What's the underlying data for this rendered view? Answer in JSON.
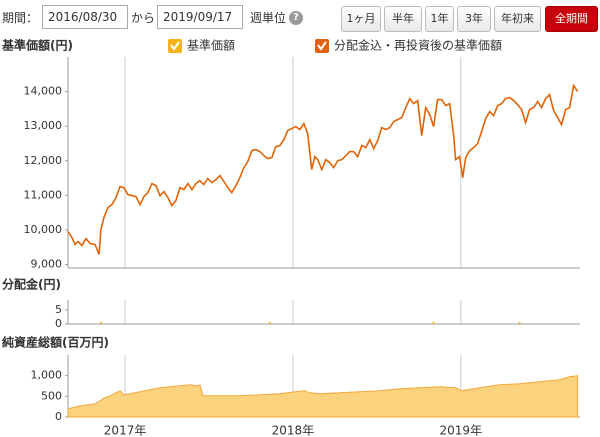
{
  "controls": {
    "period_label": "期間：",
    "from": "2016/08/30",
    "from_to": "から",
    "to": "2019/09/17",
    "unit": "週単位",
    "help": "?",
    "buttons": [
      "1ヶ月",
      "半年",
      "1年",
      "3年",
      "年初来",
      "全期間"
    ]
  },
  "chart_data": [
    {
      "type": "line",
      "title": "基準価額(円)",
      "x": [
        2016.66,
        2016.684,
        2016.702,
        2016.72,
        2016.743,
        2016.767,
        2016.791,
        2016.821,
        2016.845,
        2016.856,
        2016.874,
        2016.898,
        2016.922,
        2016.946,
        2016.97,
        2016.993,
        2017.017,
        2017.041,
        2017.065,
        2017.089,
        2017.112,
        2017.136,
        2017.16,
        2017.184,
        2017.208,
        2017.231,
        2017.255,
        2017.279,
        2017.303,
        2017.327,
        2017.35,
        2017.374,
        2017.398,
        2017.422,
        2017.446,
        2017.469,
        2017.493,
        2017.517,
        2017.541,
        2017.565,
        2017.589,
        2017.612,
        2017.636,
        2017.66,
        2017.684,
        2017.708,
        2017.731,
        2017.755,
        2017.779,
        2017.803,
        2017.827,
        2017.85,
        2017.874,
        2017.898,
        2017.922,
        2017.946,
        2017.969,
        2017.993,
        2018.017,
        2018.041,
        2018.065,
        2018.088,
        2018.112,
        2018.13,
        2018.148,
        2018.172,
        2018.196,
        2018.219,
        2018.243,
        2018.267,
        2018.291,
        2018.315,
        2018.338,
        2018.362,
        2018.386,
        2018.41,
        2018.434,
        2018.458,
        2018.481,
        2018.505,
        2018.529,
        2018.553,
        2018.577,
        2018.6,
        2018.624,
        2018.648,
        2018.672,
        2018.696,
        2018.719,
        2018.743,
        2018.767,
        2018.791,
        2018.815,
        2018.838,
        2018.862,
        2018.886,
        2018.91,
        2018.934,
        2018.957,
        2018.969,
        2018.993,
        2019.011,
        2019.029,
        2019.053,
        2019.077,
        2019.1,
        2019.124,
        2019.148,
        2019.172,
        2019.196,
        2019.219,
        2019.243,
        2019.267,
        2019.291,
        2019.315,
        2019.338,
        2019.362,
        2019.386,
        2019.41,
        2019.434,
        2019.458,
        2019.481,
        2019.505,
        2019.529,
        2019.553,
        2019.577,
        2019.6,
        2019.624,
        2019.648,
        2019.672,
        2019.696
      ],
      "series": [
        {
          "name": "基準価額",
          "color": "#f5b31f",
          "values": [
            9954,
            9780,
            9578,
            9665,
            9549,
            9751,
            9607,
            9578,
            9289,
            10012,
            10358,
            10647,
            10734,
            10936,
            11254,
            11225,
            11023,
            10994,
            10965,
            10734,
            10965,
            11081,
            11341,
            11283,
            10994,
            11110,
            10936,
            10705,
            10850,
            11225,
            11167,
            11341,
            11167,
            11341,
            11428,
            11312,
            11486,
            11370,
            11457,
            11572,
            11399,
            11225,
            11081,
            11283,
            11514,
            11803,
            11977,
            12295,
            12324,
            12266,
            12150,
            12064,
            12092,
            12410,
            12439,
            12613,
            12873,
            12931,
            12988,
            12902,
            13075,
            12786,
            11746,
            12121,
            12035,
            11746,
            12035,
            11948,
            11803,
            12006,
            12035,
            12150,
            12266,
            12266,
            12121,
            12439,
            12381,
            12613,
            12353,
            12584,
            12960,
            12902,
            12960,
            13133,
            13191,
            13249,
            13538,
            13798,
            13653,
            13740,
            12728,
            13538,
            13335,
            12988,
            13769,
            13769,
            13595,
            13653,
            12757,
            12035,
            12121,
            11514,
            12092,
            12295,
            12381,
            12497,
            12844,
            13220,
            13422,
            13306,
            13595,
            13653,
            13798,
            13827,
            13740,
            13624,
            13480,
            13104,
            13480,
            13538,
            13711,
            13538,
            13798,
            13913,
            13451,
            13249,
            13046,
            13480,
            13538,
            14173,
            14000
          ]
        },
        {
          "name": "分配金込・再投資後の基準価額",
          "color": "#e0620d",
          "values": [
            9954,
            9780,
            9578,
            9665,
            9549,
            9751,
            9607,
            9578,
            9289,
            10012,
            10358,
            10647,
            10734,
            10936,
            11254,
            11225,
            11023,
            10994,
            10965,
            10734,
            10965,
            11081,
            11341,
            11283,
            10994,
            11110,
            10936,
            10705,
            10850,
            11225,
            11167,
            11341,
            11167,
            11341,
            11428,
            11312,
            11486,
            11370,
            11457,
            11572,
            11399,
            11225,
            11081,
            11283,
            11514,
            11803,
            11977,
            12295,
            12324,
            12266,
            12150,
            12064,
            12092,
            12410,
            12439,
            12613,
            12873,
            12931,
            12988,
            12902,
            13075,
            12786,
            11746,
            12121,
            12035,
            11746,
            12035,
            11948,
            11803,
            12006,
            12035,
            12150,
            12266,
            12266,
            12121,
            12439,
            12381,
            12613,
            12353,
            12584,
            12960,
            12902,
            12960,
            13133,
            13191,
            13249,
            13538,
            13798,
            13653,
            13740,
            12728,
            13538,
            13335,
            12988,
            13769,
            13769,
            13595,
            13653,
            12757,
            12035,
            12121,
            11514,
            12092,
            12295,
            12381,
            12497,
            12844,
            13220,
            13422,
            13306,
            13595,
            13653,
            13798,
            13827,
            13740,
            13624,
            13480,
            13104,
            13480,
            13538,
            13711,
            13538,
            13798,
            13913,
            13451,
            13249,
            13046,
            13480,
            13538,
            14173,
            14000
          ]
        }
      ],
      "xlim": [
        2016.66,
        2019.71
      ],
      "xticks": [
        2017,
        2018,
        2019
      ],
      "ylim": [
        8900,
        15000
      ],
      "yticks": [
        {
          "value": 9000,
          "label": "9,000"
        },
        {
          "value": 10000,
          "label": "10,000"
        },
        {
          "value": 11000,
          "label": "11,000"
        },
        {
          "value": 12000,
          "label": "12,000"
        },
        {
          "value": 13000,
          "label": "13,000"
        },
        {
          "value": 14000,
          "label": "14,000"
        }
      ]
    },
    {
      "type": "bar",
      "title": "分配金(円)",
      "color": "#f0b43c",
      "x": [
        2016.856,
        2017.863,
        2018.838,
        2019.35
      ],
      "values": [
        0,
        0,
        0,
        0
      ],
      "xlim": [
        2016.66,
        2019.71
      ],
      "xticks": [
        2017,
        2018,
        2019
      ],
      "ylim": [
        0,
        8.5
      ],
      "yticks": [
        0,
        5
      ]
    },
    {
      "type": "area",
      "title": "純資産総額(百万円)",
      "color": "#fbd27e",
      "x": [
        2016.66,
        2016.731,
        2016.821,
        2016.85,
        2016.874,
        2016.91,
        2016.946,
        2016.97,
        2016.993,
        2017.029,
        2017.089,
        2017.148,
        2017.208,
        2017.267,
        2017.327,
        2017.386,
        2017.422,
        2017.446,
        2017.464,
        2017.565,
        2017.684,
        2017.803,
        2017.922,
        2018.017,
        2018.071,
        2018.1,
        2018.16,
        2018.279,
        2018.398,
        2018.517,
        2018.636,
        2018.755,
        2018.874,
        2018.969,
        2019.005,
        2019.112,
        2019.231,
        2019.35,
        2019.469,
        2019.589,
        2019.648,
        2019.696
      ],
      "values": [
        195,
        268,
        317,
        390,
        463,
        512,
        585,
        634,
        537,
        561,
        610,
        659,
        707,
        732,
        756,
        780,
        756,
        780,
        512,
        512,
        512,
        537,
        561,
        610,
        634,
        585,
        561,
        585,
        610,
        634,
        683,
        707,
        732,
        707,
        634,
        707,
        780,
        805,
        854,
        902,
        976,
        1000
      ],
      "xlim": [
        2016.66,
        2019.71
      ],
      "xticks": [
        {
          "value": 2017,
          "label": "2017年"
        },
        {
          "value": 2018,
          "label": "2018年"
        },
        {
          "value": 2019,
          "label": "2019年"
        }
      ],
      "ylim": [
        0,
        1500
      ],
      "yticks": [
        0,
        500,
        {
          "value": 1000,
          "label": "1,000"
        }
      ]
    }
  ]
}
